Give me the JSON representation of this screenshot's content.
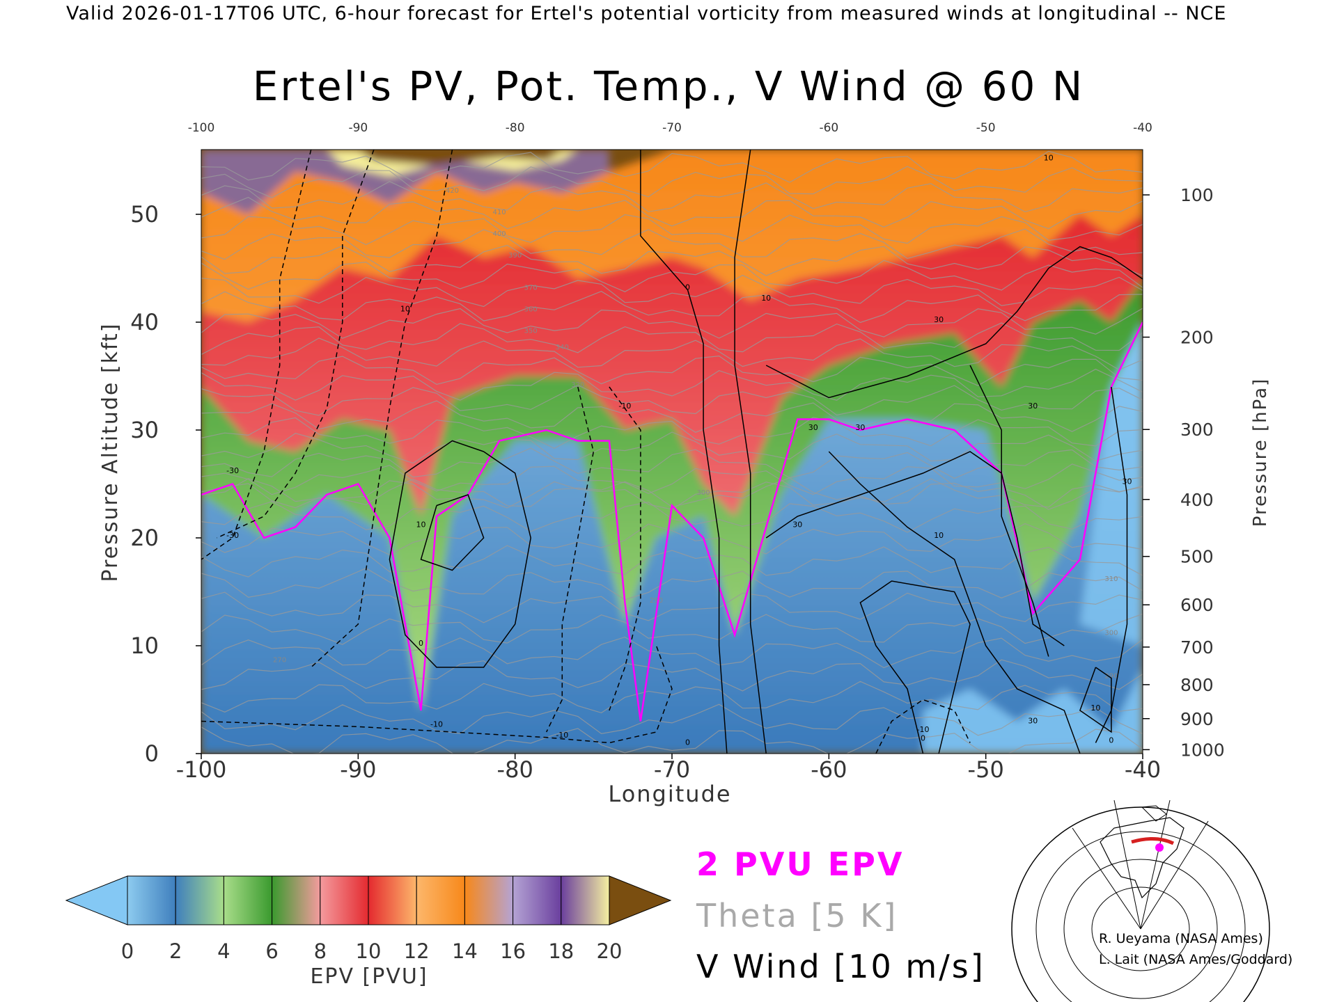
{
  "header": {
    "valid_line": "Valid 2026-01-17T06 UTC, 6-hour forecast for Ertel's potential vorticity from measured winds at longitudinal -- NCE"
  },
  "credits": [
    "R. Ueyama (NASA Ames)",
    "L. Lait (NASA Ames/Goddard)"
  ],
  "legend_keys": [
    {
      "label": "2 PVU EPV",
      "color": "#ff00ff"
    },
    {
      "label": "Theta [5 K]",
      "color": "#a9a9a9"
    },
    {
      "label": "V Wind [10 m/s]",
      "color": "#000000"
    }
  ],
  "colorbar": {
    "label": "EPV [PVU]",
    "ticks": [
      "0",
      "2",
      "4",
      "6",
      "8",
      "10",
      "12",
      "14",
      "16",
      "18",
      "20"
    ],
    "under_color": "#84c8f4",
    "over_color": "#7a4e10",
    "colors": [
      "#8dcbef",
      "#3f7fbd",
      "#a9dd8a",
      "#3a9a2e",
      "#f49b9e",
      "#e42a2f",
      "#fdb76b",
      "#f7881a",
      "#b4a3d4",
      "#6a3f9e",
      "#f5f0a0"
    ]
  },
  "chart_data": {
    "type": "heatmap",
    "title": "Ertel's PV, Pot. Temp., V Wind @ 60 N",
    "xlabel": "Longitude",
    "ylabel_left": "Pressure Altitude [kft]",
    "ylabel_right": "Pressure [hPa]",
    "xlim": [
      -100,
      -40
    ],
    "ylim": [
      0,
      56
    ],
    "x_ticks": [
      "-100",
      "-90",
      "-80",
      "-70",
      "-60",
      "-50",
      "-40"
    ],
    "y_ticks_left": [
      "0",
      "10",
      "20",
      "30",
      "40",
      "50"
    ],
    "y_ticks_right": [
      "1000",
      "900",
      "800",
      "700",
      "600",
      "500",
      "400",
      "300",
      "200",
      "100"
    ],
    "tropopause_kft": [
      [
        -100,
        24
      ],
      [
        -98,
        25
      ],
      [
        -96,
        20
      ],
      [
        -94,
        21
      ],
      [
        -92,
        24
      ],
      [
        -90,
        25
      ],
      [
        -88,
        20
      ],
      [
        -87,
        12
      ],
      [
        -86,
        4
      ],
      [
        -85,
        22
      ],
      [
        -83,
        24
      ],
      [
        -81,
        29
      ],
      [
        -78,
        30
      ],
      [
        -76,
        29
      ],
      [
        -74,
        29
      ],
      [
        -73,
        14
      ],
      [
        -72,
        3
      ],
      [
        -70,
        23
      ],
      [
        -68,
        20
      ],
      [
        -66,
        11
      ],
      [
        -64,
        21
      ],
      [
        -62,
        31
      ],
      [
        -60,
        31
      ],
      [
        -58,
        30
      ],
      [
        -55,
        31
      ],
      [
        -52,
        30
      ],
      [
        -49,
        26
      ],
      [
        -47,
        13
      ],
      [
        -44,
        18
      ],
      [
        -42,
        34
      ],
      [
        -40,
        40
      ]
    ],
    "pv_tops_kft": {
      "blue_top": [
        [
          -100,
          24
        ],
        [
          -96,
          20
        ],
        [
          -92,
          24
        ],
        [
          -88,
          20
        ],
        [
          -86,
          4
        ],
        [
          -84,
          22
        ],
        [
          -80,
          29
        ],
        [
          -76,
          29
        ],
        [
          -73,
          12
        ],
        [
          -71,
          20
        ],
        [
          -68,
          22
        ],
        [
          -66,
          11
        ],
        [
          -63,
          24
        ],
        [
          -60,
          31
        ],
        [
          -55,
          31
        ],
        [
          -50,
          30
        ],
        [
          -47,
          14
        ],
        [
          -44,
          22
        ],
        [
          -42,
          34
        ],
        [
          -40,
          40
        ]
      ],
      "green_top": [
        [
          -100,
          34
        ],
        [
          -97,
          29
        ],
        [
          -94,
          28
        ],
        [
          -91,
          31
        ],
        [
          -88,
          30
        ],
        [
          -86,
          22
        ],
        [
          -84,
          33
        ],
        [
          -80,
          35
        ],
        [
          -76,
          35
        ],
        [
          -73,
          30
        ],
        [
          -70,
          31
        ],
        [
          -68,
          25
        ],
        [
          -66,
          22
        ],
        [
          -63,
          33
        ],
        [
          -60,
          36
        ],
        [
          -56,
          38
        ],
        [
          -52,
          39
        ],
        [
          -49,
          34
        ],
        [
          -47,
          40
        ],
        [
          -44,
          42
        ],
        [
          -42,
          40
        ],
        [
          -40,
          44
        ]
      ],
      "red_top": [
        [
          -100,
          41
        ],
        [
          -97,
          40
        ],
        [
          -94,
          42
        ],
        [
          -91,
          45
        ],
        [
          -88,
          44
        ],
        [
          -85,
          48
        ],
        [
          -82,
          46
        ],
        [
          -79,
          47
        ],
        [
          -76,
          44
        ],
        [
          -73,
          45
        ],
        [
          -70,
          46
        ],
        [
          -68,
          45
        ],
        [
          -65,
          42
        ],
        [
          -62,
          44
        ],
        [
          -58,
          45
        ],
        [
          -55,
          46
        ],
        [
          -52,
          47
        ],
        [
          -49,
          48
        ],
        [
          -47,
          46
        ],
        [
          -44,
          50
        ],
        [
          -42,
          48
        ],
        [
          -40,
          50
        ]
      ],
      "orange_top": [
        [
          -100,
          52
        ],
        [
          -97,
          50
        ],
        [
          -94,
          54
        ],
        [
          -91,
          53
        ],
        [
          -88,
          51
        ],
        [
          -85,
          54
        ],
        [
          -82,
          52
        ],
        [
          -80,
          53
        ],
        [
          -77,
          52
        ],
        [
          -74,
          54
        ],
        [
          -70,
          56
        ],
        [
          -66,
          56
        ],
        [
          -62,
          56
        ],
        [
          -58,
          56
        ],
        [
          -54,
          56
        ],
        [
          -50,
          56
        ],
        [
          -46,
          56
        ],
        [
          -42,
          56
        ],
        [
          -40,
          56
        ]
      ]
    },
    "theta_labels": [
      {
        "x": -84,
        "y": 52,
        "text": "420"
      },
      {
        "x": -81,
        "y": 50,
        "text": "410"
      },
      {
        "x": -81,
        "y": 48,
        "text": "400"
      },
      {
        "x": -80,
        "y": 46,
        "text": "390"
      },
      {
        "x": -79,
        "y": 43,
        "text": "370"
      },
      {
        "x": -79,
        "y": 41,
        "text": "360"
      },
      {
        "x": -79,
        "y": 39,
        "text": "350"
      },
      {
        "x": -77,
        "y": 37.5,
        "text": "340"
      },
      {
        "x": -76,
        "y": 34,
        "text": "320"
      },
      {
        "x": -68,
        "y": 24,
        "text": "300"
      },
      {
        "x": -71,
        "y": 14,
        "text": "290"
      },
      {
        "x": -95,
        "y": 8.5,
        "text": "270"
      },
      {
        "x": -42,
        "y": 16,
        "text": "310"
      },
      {
        "x": -42,
        "y": 11,
        "text": "300"
      },
      {
        "x": -42,
        "y": 7,
        "text": "290"
      }
    ],
    "wind_labels": [
      {
        "x": -87,
        "y": 41,
        "text": "10"
      },
      {
        "x": -86,
        "y": 21,
        "text": "10"
      },
      {
        "x": -86,
        "y": 10,
        "text": "0"
      },
      {
        "x": -69,
        "y": 43,
        "text": "0"
      },
      {
        "x": -64,
        "y": 42,
        "text": "10"
      },
      {
        "x": -53,
        "y": 40,
        "text": "30"
      },
      {
        "x": -61,
        "y": 30,
        "text": "30"
      },
      {
        "x": -58,
        "y": 30,
        "text": "30"
      },
      {
        "x": -62,
        "y": 21,
        "text": "30"
      },
      {
        "x": -53,
        "y": 20,
        "text": "10"
      },
      {
        "x": -47,
        "y": 32,
        "text": "30"
      },
      {
        "x": -41,
        "y": 25,
        "text": "30"
      },
      {
        "x": -98,
        "y": 26,
        "text": "-30"
      },
      {
        "x": -98,
        "y": 20,
        "text": "-30"
      },
      {
        "x": -73,
        "y": 32,
        "text": "-10"
      },
      {
        "x": -85,
        "y": 2.5,
        "text": "-10"
      },
      {
        "x": -77,
        "y": 1.5,
        "text": "-10"
      },
      {
        "x": -54,
        "y": 2,
        "text": "-10"
      },
      {
        "x": -47,
        "y": 2.8,
        "text": "30"
      },
      {
        "x": -43,
        "y": 4,
        "text": "10"
      },
      {
        "x": -42,
        "y": 1,
        "text": "0"
      },
      {
        "x": -54,
        "y": 1.2,
        "text": "0"
      },
      {
        "x": -69,
        "y": 0.8,
        "text": "0"
      },
      {
        "x": -46,
        "y": 55,
        "text": "10"
      }
    ]
  }
}
